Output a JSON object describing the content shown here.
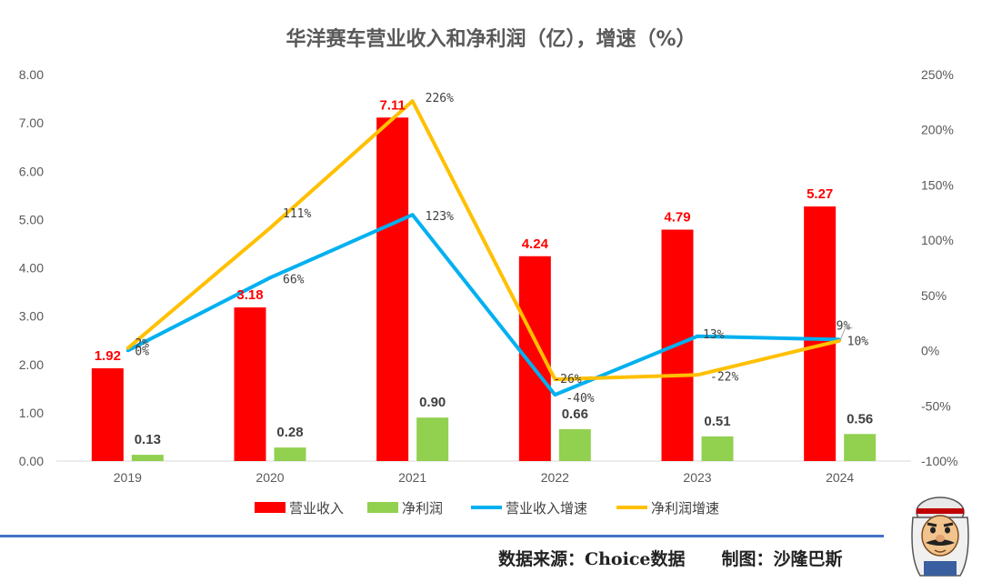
{
  "chart_data": {
    "type": "bar",
    "title": "华洋赛车营业收入和净利润（亿），增速（%）",
    "categories": [
      "2019",
      "2020",
      "2021",
      "2022",
      "2023",
      "2024"
    ],
    "y_left": {
      "ticks": [
        "0.00",
        "1.00",
        "2.00",
        "3.00",
        "4.00",
        "5.00",
        "6.00",
        "7.00",
        "8.00"
      ],
      "ylim": [
        0,
        8
      ]
    },
    "y_right": {
      "ticks": [
        "-100%",
        "-50%",
        "0%",
        "50%",
        "100%",
        "150%",
        "200%",
        "250%"
      ],
      "ylim": [
        -100,
        250
      ]
    },
    "series": [
      {
        "name": "营业收入",
        "kind": "bar",
        "axis": "left",
        "color": "#ff0000",
        "values": [
          1.92,
          3.18,
          7.11,
          4.24,
          4.79,
          5.27
        ],
        "labels": [
          "1.92",
          "3.18",
          "7.11",
          "4.24",
          "4.79",
          "5.27"
        ]
      },
      {
        "name": "净利润",
        "kind": "bar",
        "axis": "left",
        "color": "#92d050",
        "values": [
          0.13,
          0.28,
          0.9,
          0.66,
          0.51,
          0.56
        ],
        "labels": [
          "0.13",
          "0.28",
          "0.90",
          "0.66",
          "0.51",
          "0.56"
        ]
      },
      {
        "name": "营业收入增速",
        "kind": "line",
        "axis": "right",
        "color": "#00b0f0",
        "values": [
          0,
          66,
          123,
          -40,
          13,
          10
        ],
        "labels": [
          "0%",
          "66%",
          "123%",
          "-40%",
          "13%",
          "10%"
        ]
      },
      {
        "name": "净利润增速",
        "kind": "line",
        "axis": "right",
        "color": "#ffc000",
        "values": [
          2,
          111,
          226,
          -26,
          -22,
          9
        ],
        "labels": [
          "2%",
          "111%",
          "226%",
          "-26%",
          "-22%",
          "9%"
        ]
      }
    ],
    "legend_position": "bottom",
    "grid": false
  },
  "footer": {
    "source": "数据来源：Choice数据",
    "credit": "制图：沙隆巴斯"
  },
  "avatar_icon": "cartoon-man-icon"
}
